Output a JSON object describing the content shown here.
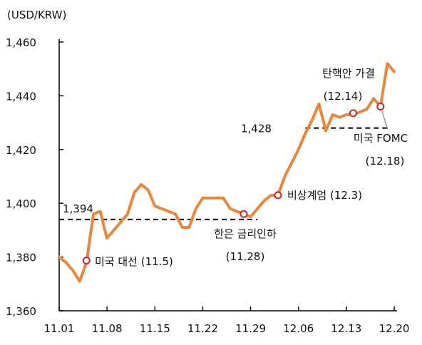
{
  "chart_data": {
    "type": "line",
    "unit_label": "(USD/KRW)",
    "ylim": [
      1360,
      1460
    ],
    "y_ticks": [
      "1,460",
      "1,440",
      "1,420",
      "1,400",
      "1,380",
      "1,360"
    ],
    "x_ticks": [
      "11.01",
      "11.08",
      "11.15",
      "11.22",
      "11.29",
      "12.06",
      "12.13",
      "12.20"
    ],
    "series": [
      {
        "color": "#e8873a",
        "points": [
          [
            "11.01",
            1380
          ],
          [
            "11.02",
            1378
          ],
          [
            "11.03",
            1375
          ],
          [
            "11.04",
            1371
          ],
          [
            "11.05",
            1378
          ],
          [
            "11.06",
            1396
          ],
          [
            "11.07",
            1397
          ],
          [
            "11.08",
            1387
          ],
          [
            "11.09",
            1390
          ],
          [
            "11.10",
            1393
          ],
          [
            "11.11",
            1396
          ],
          [
            "11.12",
            1404
          ],
          [
            "11.13",
            1407
          ],
          [
            "11.14",
            1405
          ],
          [
            "11.15",
            1399
          ],
          [
            "11.16",
            1398
          ],
          [
            "11.17",
            1397
          ],
          [
            "11.18",
            1396
          ],
          [
            "11.19",
            1391
          ],
          [
            "11.20",
            1391
          ],
          [
            "11.21",
            1398
          ],
          [
            "11.22",
            1402
          ],
          [
            "11.23",
            1402
          ],
          [
            "11.24",
            1402
          ],
          [
            "11.25",
            1402
          ],
          [
            "11.26",
            1398
          ],
          [
            "11.27",
            1397
          ],
          [
            "11.28",
            1396
          ],
          [
            "11.29",
            1395
          ],
          [
            "11.30",
            1398
          ],
          [
            "12.01",
            1401
          ],
          [
            "12.02",
            1403
          ],
          [
            "12.03",
            1403
          ],
          [
            "12.04",
            1410
          ],
          [
            "12.05",
            1415
          ],
          [
            "12.06",
            1420
          ],
          [
            "12.07",
            1426
          ],
          [
            "12.08",
            1431
          ],
          [
            "12.09",
            1437
          ],
          [
            "12.10",
            1427
          ],
          [
            "12.11",
            1433
          ],
          [
            "12.12",
            1432
          ],
          [
            "12.13",
            1433
          ],
          [
            "12.14",
            1433
          ],
          [
            "12.15",
            1434
          ],
          [
            "12.16",
            1435
          ],
          [
            "12.17",
            1439
          ],
          [
            "12.18",
            1436
          ],
          [
            "12.19",
            1452
          ],
          [
            "12.20",
            1449
          ]
        ]
      }
    ],
    "reference_lines": [
      {
        "value": 1394,
        "label": "1,394",
        "from": "11.01",
        "to": "11.30"
      },
      {
        "value": 1428,
        "label": "1,428",
        "from": "12.07",
        "to": "12.19"
      }
    ],
    "annotations": [
      {
        "x": "11.05",
        "y": 1378.7,
        "label": "미국 대선 (11.5)"
      },
      {
        "x": "11.28",
        "y": 1396,
        "line1": "한은 금리인하",
        "line2": "(11.28)"
      },
      {
        "x": "12.03",
        "y": 1403,
        "label": "비상계엄 (12.3)"
      },
      {
        "x": "12.14",
        "y": 1433.5,
        "line1": "탄핵안 가결",
        "line2": "(12.14)"
      },
      {
        "x": "12.18",
        "y": 1436,
        "line1": "미국 FOMC",
        "line2": "(12.18)"
      }
    ]
  }
}
